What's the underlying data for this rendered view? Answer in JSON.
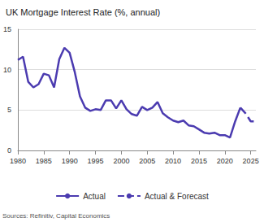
{
  "chart_data": {
    "type": "line",
    "title": "UK Mortgage Interest Rate (%, annual)",
    "source": "Sources: Refinitiv, Capital Economics",
    "x": [
      1980,
      1981,
      1982,
      1983,
      1984,
      1985,
      1986,
      1987,
      1988,
      1989,
      1990,
      1991,
      1992,
      1993,
      1994,
      1995,
      1996,
      1997,
      1998,
      1999,
      2000,
      2001,
      2002,
      2003,
      2004,
      2005,
      2006,
      2007,
      2008,
      2009,
      2010,
      2011,
      2012,
      2013,
      2014,
      2015,
      2016,
      2017,
      2018,
      2019,
      2020,
      2021,
      2022,
      2023,
      2024,
      2025,
      2026
    ],
    "series": [
      {
        "name": "Actual",
        "color": "#4b3bb0",
        "line_style": "solid",
        "values": [
          11.2,
          11.6,
          8.5,
          7.8,
          8.2,
          9.5,
          9.3,
          7.8,
          11.3,
          12.7,
          12.1,
          9.7,
          6.7,
          5.3,
          4.9,
          5.1,
          5.0,
          6.2,
          6.2,
          5.2,
          6.2,
          5.1,
          4.5,
          4.3,
          5.4,
          5.0,
          5.3,
          6.0,
          4.6,
          4.1,
          3.7,
          3.5,
          3.7,
          3.1,
          3.0,
          2.6,
          2.2,
          2.1,
          2.2,
          1.9,
          1.9,
          1.6,
          3.6,
          5.3,
          null,
          null,
          null
        ]
      },
      {
        "name": "Actual & Forecast",
        "color": "#4b3bb0",
        "line_style": "dashed",
        "values": [
          null,
          null,
          null,
          null,
          null,
          null,
          null,
          null,
          null,
          null,
          null,
          null,
          null,
          null,
          null,
          null,
          null,
          null,
          null,
          null,
          null,
          null,
          null,
          null,
          null,
          null,
          null,
          null,
          null,
          null,
          null,
          null,
          null,
          null,
          null,
          null,
          null,
          null,
          null,
          null,
          null,
          null,
          null,
          5.3,
          4.6,
          3.6,
          3.6
        ]
      }
    ],
    "xlim": [
      1980,
      2026
    ],
    "xticks": [
      1980,
      1985,
      1990,
      1995,
      2000,
      2005,
      2010,
      2015,
      2020,
      2025
    ],
    "ylim": [
      0,
      15
    ],
    "yticks": [
      0,
      5,
      10,
      15
    ],
    "grid": true,
    "legend": "bottom"
  }
}
